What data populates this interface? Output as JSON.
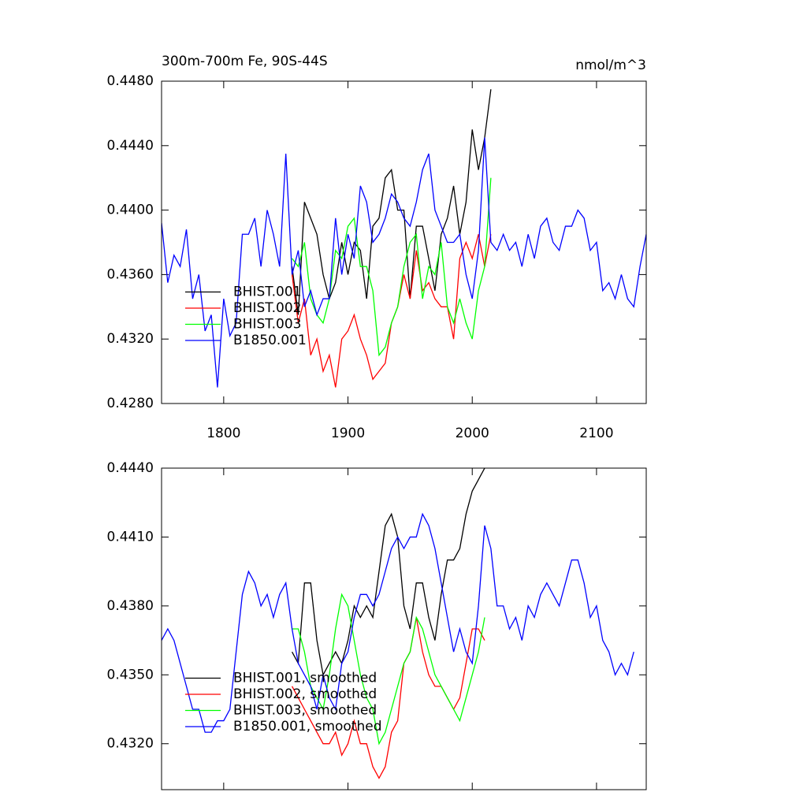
{
  "chart_data": [
    {
      "type": "line",
      "title": "300m-700m Fe, 90S-44S",
      "units": "nmol/m^3",
      "xlim": [
        1750,
        2140
      ],
      "xticks": [
        1800,
        1900,
        2000,
        2100
      ],
      "ylim": [
        0.428,
        0.448
      ],
      "yticks": [
        {
          "value": 0.428,
          "label": "0.4280"
        },
        {
          "value": 0.432,
          "label": "0.4320"
        },
        {
          "value": 0.436,
          "label": "0.4360"
        },
        {
          "value": 0.44,
          "label": "0.4400"
        },
        {
          "value": 0.444,
          "label": "0.4440"
        },
        {
          "value": 0.448,
          "label": "0.4480"
        }
      ],
      "legend": "lower left",
      "series": [
        {
          "name": "BHIST.001",
          "color": "#000000",
          "x": [
            1855,
            1860,
            1865,
            1870,
            1875,
            1880,
            1885,
            1890,
            1895,
            1900,
            1905,
            1910,
            1915,
            1920,
            1925,
            1930,
            1935,
            1940,
            1945,
            1950,
            1955,
            1960,
            1965,
            1970,
            1975,
            1980,
            1985,
            1990,
            1995,
            2000,
            2005,
            2010,
            2015
          ],
          "values": [
            0.4365,
            0.4335,
            0.4405,
            0.4395,
            0.4385,
            0.436,
            0.4345,
            0.4355,
            0.438,
            0.436,
            0.438,
            0.4375,
            0.4345,
            0.439,
            0.4395,
            0.442,
            0.4425,
            0.44,
            0.44,
            0.4345,
            0.439,
            0.439,
            0.437,
            0.435,
            0.4385,
            0.4395,
            0.4415,
            0.4385,
            0.4405,
            0.445,
            0.4425,
            0.4445,
            0.4475
          ]
        },
        {
          "name": "BHIST.002",
          "color": "#ff0000",
          "x": [
            1855,
            1860,
            1865,
            1870,
            1875,
            1880,
            1885,
            1890,
            1895,
            1900,
            1905,
            1910,
            1915,
            1920,
            1925,
            1930,
            1935,
            1940,
            1945,
            1950,
            1955,
            1960,
            1965,
            1970,
            1975,
            1980,
            1985,
            1990,
            1995,
            2000,
            2005,
            2010,
            2015
          ],
          "values": [
            0.436,
            0.433,
            0.4345,
            0.431,
            0.432,
            0.43,
            0.431,
            0.429,
            0.432,
            0.4325,
            0.4335,
            0.432,
            0.431,
            0.4295,
            0.43,
            0.4305,
            0.433,
            0.434,
            0.436,
            0.4345,
            0.4375,
            0.435,
            0.4355,
            0.4345,
            0.434,
            0.434,
            0.432,
            0.437,
            0.438,
            0.437,
            0.4385,
            0.4365,
            0.4385
          ]
        },
        {
          "name": "BHIST.003",
          "color": "#00ff00",
          "x": [
            1855,
            1860,
            1865,
            1870,
            1875,
            1880,
            1885,
            1890,
            1895,
            1900,
            1905,
            1910,
            1915,
            1920,
            1925,
            1930,
            1935,
            1940,
            1945,
            1950,
            1955,
            1960,
            1965,
            1970,
            1975,
            1980,
            1985,
            1990,
            1995,
            2000,
            2005,
            2010,
            2015
          ],
          "values": [
            0.437,
            0.4365,
            0.438,
            0.4345,
            0.4335,
            0.433,
            0.4345,
            0.4375,
            0.437,
            0.439,
            0.4395,
            0.4365,
            0.4365,
            0.435,
            0.431,
            0.4315,
            0.433,
            0.434,
            0.4365,
            0.438,
            0.4385,
            0.4345,
            0.4365,
            0.436,
            0.438,
            0.434,
            0.433,
            0.4345,
            0.433,
            0.432,
            0.435,
            0.4365,
            0.442
          ]
        },
        {
          "name": "B1850.001",
          "color": "#0000ff",
          "x": [
            1750,
            1755,
            1760,
            1765,
            1770,
            1775,
            1780,
            1785,
            1790,
            1795,
            1800,
            1805,
            1810,
            1815,
            1820,
            1825,
            1830,
            1835,
            1840,
            1845,
            1850,
            1855,
            1860,
            1865,
            1870,
            1875,
            1880,
            1885,
            1890,
            1895,
            1900,
            1905,
            1910,
            1915,
            1920,
            1925,
            1930,
            1935,
            1940,
            1945,
            1950,
            1955,
            1960,
            1965,
            1970,
            1975,
            1980,
            1985,
            1990,
            1995,
            2000,
            2005,
            2010,
            2015,
            2020,
            2025,
            2030,
            2035,
            2040,
            2045,
            2050,
            2055,
            2060,
            2065,
            2070,
            2075,
            2080,
            2085,
            2090,
            2095,
            2100,
            2105,
            2110,
            2115,
            2120,
            2125,
            2130,
            2135,
            2140
          ],
          "values": [
            0.4392,
            0.4355,
            0.4372,
            0.4365,
            0.4388,
            0.4345,
            0.436,
            0.4325,
            0.4335,
            0.429,
            0.4345,
            0.4322,
            0.433,
            0.4385,
            0.4385,
            0.4395,
            0.4365,
            0.44,
            0.4385,
            0.4365,
            0.4435,
            0.436,
            0.4375,
            0.434,
            0.435,
            0.4335,
            0.4345,
            0.4345,
            0.4395,
            0.436,
            0.4385,
            0.437,
            0.4415,
            0.4405,
            0.438,
            0.4385,
            0.4395,
            0.441,
            0.4405,
            0.4395,
            0.439,
            0.4405,
            0.4425,
            0.4435,
            0.44,
            0.439,
            0.438,
            0.438,
            0.4385,
            0.436,
            0.4345,
            0.4375,
            0.4445,
            0.438,
            0.4375,
            0.4385,
            0.4375,
            0.438,
            0.4365,
            0.4385,
            0.437,
            0.439,
            0.4395,
            0.438,
            0.4375,
            0.439,
            0.439,
            0.44,
            0.4395,
            0.4375,
            0.438,
            0.435,
            0.4355,
            0.4345,
            0.436,
            0.4345,
            0.434,
            0.4365,
            0.4385
          ]
        }
      ]
    },
    {
      "type": "line",
      "xlim": [
        1750,
        2140
      ],
      "xticks": [
        1800,
        1900,
        2000,
        2100
      ],
      "ylim": [
        0.43,
        0.444
      ],
      "yticks": [
        {
          "value": 0.432,
          "label": "0.4320"
        },
        {
          "value": 0.435,
          "label": "0.4350"
        },
        {
          "value": 0.438,
          "label": "0.4380"
        },
        {
          "value": 0.441,
          "label": "0.4410"
        },
        {
          "value": 0.444,
          "label": "0.4440"
        }
      ],
      "legend": "lower left",
      "series": [
        {
          "name": "BHIST.001, smoothed",
          "color": "#000000",
          "x": [
            1855,
            1860,
            1865,
            1870,
            1875,
            1880,
            1885,
            1890,
            1895,
            1900,
            1905,
            1910,
            1915,
            1920,
            1925,
            1930,
            1935,
            1940,
            1945,
            1950,
            1955,
            1960,
            1965,
            1970,
            1975,
            1980,
            1985,
            1990,
            1995,
            2000,
            2005,
            2010
          ],
          "values": [
            0.436,
            0.4355,
            0.439,
            0.439,
            0.4365,
            0.435,
            0.4355,
            0.436,
            0.4355,
            0.4365,
            0.438,
            0.4375,
            0.438,
            0.4375,
            0.4395,
            0.4415,
            0.442,
            0.441,
            0.438,
            0.437,
            0.439,
            0.439,
            0.4375,
            0.4365,
            0.4385,
            0.44,
            0.44,
            0.4405,
            0.442,
            0.443,
            0.4435,
            0.444
          ]
        },
        {
          "name": "BHIST.002, smoothed",
          "color": "#ff0000",
          "x": [
            1855,
            1860,
            1865,
            1870,
            1875,
            1880,
            1885,
            1890,
            1895,
            1900,
            1905,
            1910,
            1915,
            1920,
            1925,
            1930,
            1935,
            1940,
            1945,
            1950,
            1955,
            1960,
            1965,
            1970,
            1975,
            1980,
            1985,
            1990,
            1995,
            2000,
            2005,
            2010
          ],
          "values": [
            0.4345,
            0.434,
            0.4335,
            0.433,
            0.4325,
            0.432,
            0.432,
            0.4325,
            0.4315,
            0.432,
            0.433,
            0.432,
            0.432,
            0.431,
            0.4305,
            0.431,
            0.4325,
            0.433,
            0.4355,
            0.436,
            0.4375,
            0.436,
            0.435,
            0.4345,
            0.4345,
            0.434,
            0.4335,
            0.434,
            0.4355,
            0.437,
            0.437,
            0.4365
          ]
        },
        {
          "name": "BHIST.003, smoothed",
          "color": "#00ff00",
          "x": [
            1855,
            1860,
            1865,
            1870,
            1875,
            1880,
            1885,
            1890,
            1895,
            1900,
            1905,
            1910,
            1915,
            1920,
            1925,
            1930,
            1935,
            1940,
            1945,
            1950,
            1955,
            1960,
            1965,
            1970,
            1975,
            1980,
            1985,
            1990,
            1995,
            2000,
            2005,
            2010
          ],
          "values": [
            0.437,
            0.437,
            0.436,
            0.4345,
            0.434,
            0.4335,
            0.435,
            0.437,
            0.4385,
            0.438,
            0.4365,
            0.435,
            0.434,
            0.4335,
            0.432,
            0.4325,
            0.4335,
            0.4345,
            0.4355,
            0.436,
            0.4375,
            0.437,
            0.436,
            0.435,
            0.4345,
            0.434,
            0.4335,
            0.433,
            0.434,
            0.435,
            0.436,
            0.4375
          ]
        },
        {
          "name": "B1850.001, smoothed",
          "color": "#0000ff",
          "x": [
            1750,
            1755,
            1760,
            1765,
            1770,
            1775,
            1780,
            1785,
            1790,
            1795,
            1800,
            1805,
            1810,
            1815,
            1820,
            1825,
            1830,
            1835,
            1840,
            1845,
            1850,
            1855,
            1860,
            1865,
            1870,
            1875,
            1880,
            1885,
            1890,
            1895,
            1900,
            1905,
            1910,
            1915,
            1920,
            1925,
            1930,
            1935,
            1940,
            1945,
            1950,
            1955,
            1960,
            1965,
            1970,
            1975,
            1980,
            1985,
            1990,
            1995,
            2000,
            2005,
            2010,
            2015,
            2020,
            2025,
            2030,
            2035,
            2040,
            2045,
            2050,
            2055,
            2060,
            2065,
            2070,
            2075,
            2080,
            2085,
            2090,
            2095,
            2100,
            2105,
            2110,
            2115,
            2120,
            2125,
            2130
          ],
          "values": [
            0.4365,
            0.437,
            0.4365,
            0.4355,
            0.4345,
            0.4335,
            0.4335,
            0.4325,
            0.4325,
            0.433,
            0.433,
            0.4335,
            0.436,
            0.4385,
            0.4395,
            0.439,
            0.438,
            0.4385,
            0.4375,
            0.4385,
            0.439,
            0.437,
            0.4355,
            0.435,
            0.4345,
            0.4335,
            0.435,
            0.434,
            0.4335,
            0.4355,
            0.436,
            0.4375,
            0.4385,
            0.4385,
            0.438,
            0.4385,
            0.4395,
            0.4405,
            0.441,
            0.4405,
            0.441,
            0.441,
            0.442,
            0.4415,
            0.4405,
            0.439,
            0.4375,
            0.436,
            0.437,
            0.436,
            0.4355,
            0.438,
            0.4415,
            0.4405,
            0.438,
            0.438,
            0.437,
            0.4375,
            0.4365,
            0.438,
            0.4375,
            0.4385,
            0.439,
            0.4385,
            0.438,
            0.439,
            0.44,
            0.44,
            0.439,
            0.4375,
            0.438,
            0.4365,
            0.436,
            0.435,
            0.4355,
            0.435,
            0.436
          ]
        }
      ]
    }
  ]
}
